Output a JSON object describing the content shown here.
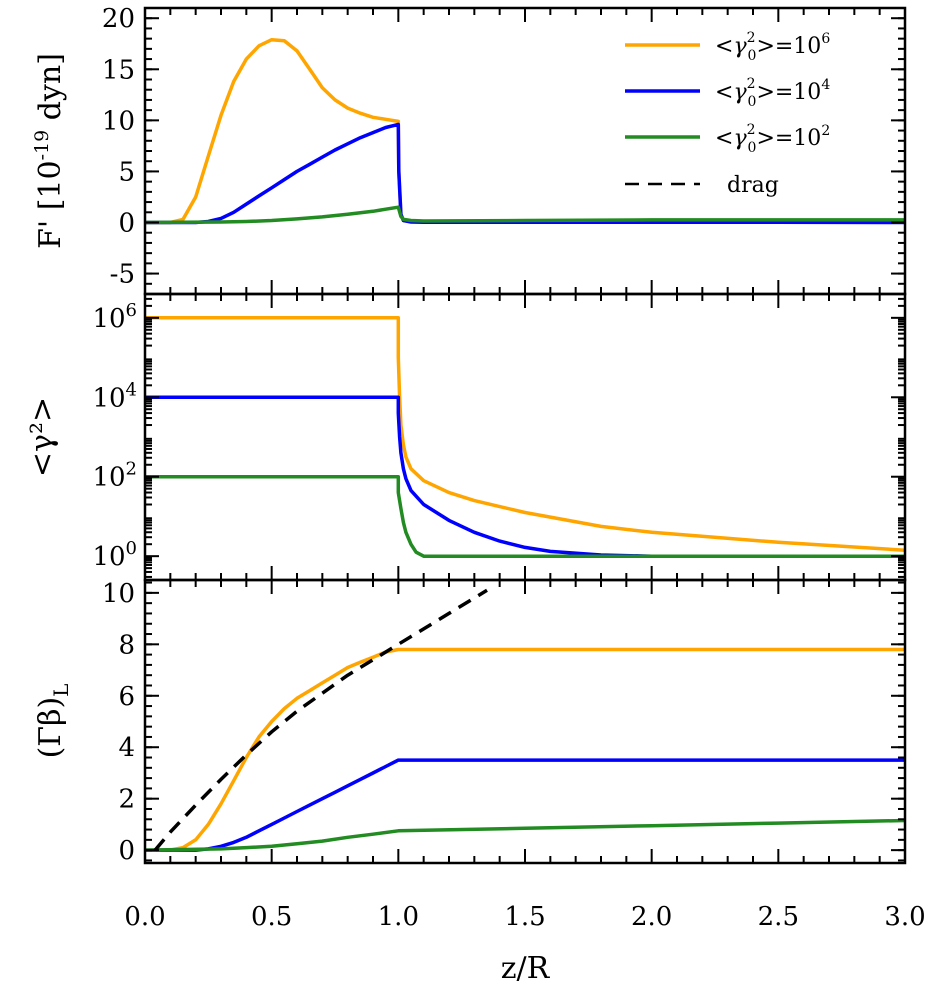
{
  "chart_data": {
    "type": "line",
    "x_axis": {
      "label": "z/R",
      "range": [
        0,
        3
      ],
      "ticks": [
        0.0,
        0.5,
        1.0,
        1.5,
        2.0,
        2.5,
        3.0
      ],
      "tick_labels": [
        "0.0",
        "0.5",
        "1.0",
        "1.5",
        "2.0",
        "2.5",
        "3.0"
      ]
    },
    "legend": {
      "position": "top-right",
      "entries": [
        {
          "label": "<γ0²>=10⁶",
          "prefix": "<",
          "symbol": "γ",
          "sub": "0",
          "sup": "2",
          "middle": ">=10",
          "exp": "6",
          "color": "#ffa500",
          "dash": false
        },
        {
          "label": "<γ0²>=10⁴",
          "prefix": "<",
          "symbol": "γ",
          "sub": "0",
          "sup": "2",
          "middle": ">=10",
          "exp": "4",
          "color": "#0000ff",
          "dash": false
        },
        {
          "label": "<γ0²>=10²",
          "prefix": "<",
          "symbol": "γ",
          "sub": "0",
          "sup": "2",
          "middle": ">=10",
          "exp": "2",
          "color": "#228b22",
          "dash": false
        },
        {
          "label": "drag",
          "color": "#000000",
          "dash": true
        }
      ]
    },
    "panels": [
      {
        "id": "force",
        "ylabel": "F' [10⁻¹⁹ dyn]",
        "ylabel_main": "F' [10",
        "ylabel_exp": "-19",
        "ylabel_end": " dyn]",
        "yscale": "linear",
        "ylim": [
          -7,
          21
        ],
        "yticks": [
          -5,
          0,
          5,
          10,
          15,
          20
        ],
        "ytick_labels": [
          "-5",
          "0",
          "5",
          "10",
          "15",
          "20"
        ],
        "series": [
          {
            "name": "<γ0²>=10⁶",
            "color": "#ffa500",
            "x": [
              0,
              0.1,
              0.15,
              0.2,
              0.25,
              0.3,
              0.35,
              0.4,
              0.45,
              0.5,
              0.55,
              0.6,
              0.65,
              0.7,
              0.75,
              0.8,
              0.85,
              0.9,
              0.95,
              1.0,
              1.002,
              1.01,
              1.02,
              1.05,
              1.1,
              1.5,
              2.0,
              2.5,
              3.0
            ],
            "y": [
              0,
              0,
              0.3,
              2.5,
              6.5,
              10.5,
              13.8,
              16.0,
              17.3,
              17.9,
              17.8,
              16.8,
              15.0,
              13.2,
              12.0,
              11.2,
              10.7,
              10.3,
              10.1,
              9.9,
              5.0,
              0.8,
              0.2,
              0.1,
              0.1,
              0.1,
              0.1,
              0.1,
              0.1
            ]
          },
          {
            "name": "<γ0²>=10⁴",
            "color": "#0000ff",
            "x": [
              0,
              0.2,
              0.25,
              0.3,
              0.35,
              0.4,
              0.45,
              0.5,
              0.55,
              0.6,
              0.65,
              0.7,
              0.75,
              0.8,
              0.85,
              0.9,
              0.95,
              1.0,
              1.002,
              1.01,
              1.02,
              1.05,
              1.1,
              1.5,
              2.0,
              2.5,
              3.0
            ],
            "y": [
              0,
              0,
              0.1,
              0.4,
              1.0,
              1.8,
              2.6,
              3.4,
              4.2,
              5.0,
              5.7,
              6.4,
              7.1,
              7.7,
              8.3,
              8.8,
              9.3,
              9.6,
              5.0,
              0.8,
              0.2,
              0.05,
              0.02,
              0.02,
              0.02,
              0.02,
              0.0
            ]
          },
          {
            "name": "<γ0²>=10²",
            "color": "#228b22",
            "x": [
              0,
              0.3,
              0.4,
              0.5,
              0.6,
              0.7,
              0.8,
              0.9,
              0.95,
              1.0,
              1.01,
              1.02,
              1.05,
              1.1,
              1.5,
              2.0,
              2.5,
              3.0
            ],
            "y": [
              0,
              0.05,
              0.1,
              0.2,
              0.35,
              0.55,
              0.8,
              1.1,
              1.3,
              1.5,
              0.6,
              0.3,
              0.2,
              0.15,
              0.2,
              0.25,
              0.25,
              0.25
            ]
          }
        ]
      },
      {
        "id": "gamma",
        "ylabel": "<γ²>",
        "yscale": "log",
        "ylim_log10": [
          -0.6,
          6.6
        ],
        "yticks_log10": [
          0,
          2,
          4,
          6
        ],
        "ytick_base": "10",
        "ytick_exps": [
          "0",
          "2",
          "4",
          "6"
        ],
        "series": [
          {
            "name": "<γ0²>=10⁶",
            "color": "#ffa500",
            "x": [
              0,
              1.0,
              1.0,
              1.005,
              1.01,
              1.02,
              1.03,
              1.05,
              1.1,
              1.2,
              1.3,
              1.5,
              1.8,
              2.0,
              2.5,
              3.0
            ],
            "y_log10": [
              6,
              6,
              5.0,
              4.0,
              3.3,
              2.8,
              2.5,
              2.2,
              1.9,
              1.6,
              1.4,
              1.1,
              0.75,
              0.6,
              0.35,
              0.15
            ]
          },
          {
            "name": "<γ0²>=10⁴",
            "color": "#0000ff",
            "x": [
              0,
              1.0,
              1.0,
              1.005,
              1.01,
              1.02,
              1.03,
              1.05,
              1.1,
              1.2,
              1.3,
              1.4,
              1.5,
              1.6,
              1.8,
              2.0,
              2.5,
              3.0
            ],
            "y_log10": [
              4,
              4,
              3.6,
              3.0,
              2.6,
              2.2,
              1.95,
              1.65,
              1.3,
              0.9,
              0.6,
              0.38,
              0.22,
              0.12,
              0.03,
              0.0,
              0.0,
              0.0
            ]
          },
          {
            "name": "<γ0²>=10²",
            "color": "#228b22",
            "x": [
              0,
              1.0,
              1.0,
              1.01,
              1.02,
              1.03,
              1.05,
              1.07,
              1.1,
              1.5,
              2.0,
              3.0
            ],
            "y_log10": [
              2,
              2,
              1.6,
              1.2,
              0.85,
              0.6,
              0.3,
              0.1,
              0.0,
              0.0,
              0.0,
              0.0
            ]
          }
        ]
      },
      {
        "id": "gammabeta",
        "ylabel": "(Γβ)L",
        "ylabel_main": "(Γβ)",
        "ylabel_sub": "L",
        "yscale": "linear",
        "ylim": [
          -0.5,
          10.5
        ],
        "yticks": [
          0,
          2,
          4,
          6,
          8,
          10
        ],
        "ytick_labels": [
          "0",
          "2",
          "4",
          "6",
          "8",
          "10"
        ],
        "series": [
          {
            "name": "<γ0²>=10⁶",
            "color": "#ffa500",
            "x": [
              0,
              0.1,
              0.15,
              0.2,
              0.25,
              0.3,
              0.35,
              0.4,
              0.45,
              0.5,
              0.55,
              0.6,
              0.65,
              0.7,
              0.75,
              0.8,
              0.85,
              0.9,
              0.95,
              1.0,
              1.5,
              2.0,
              2.5,
              3.0
            ],
            "y": [
              0,
              0,
              0.1,
              0.4,
              1.0,
              1.8,
              2.7,
              3.6,
              4.4,
              5.0,
              5.5,
              5.9,
              6.2,
              6.5,
              6.8,
              7.1,
              7.3,
              7.5,
              7.7,
              7.8,
              7.8,
              7.8,
              7.8,
              7.8
            ]
          },
          {
            "name": "<γ0²>=10⁴",
            "color": "#0000ff",
            "x": [
              0,
              0.2,
              0.25,
              0.3,
              0.35,
              0.4,
              0.45,
              0.5,
              0.55,
              0.6,
              0.65,
              0.7,
              0.75,
              0.8,
              0.85,
              0.9,
              0.95,
              1.0,
              1.5,
              2.0,
              2.5,
              3.0
            ],
            "y": [
              0,
              0,
              0.05,
              0.15,
              0.3,
              0.5,
              0.75,
              1.0,
              1.25,
              1.5,
              1.75,
              2.0,
              2.25,
              2.5,
              2.75,
              3.0,
              3.25,
              3.5,
              3.5,
              3.5,
              3.5,
              3.5
            ]
          },
          {
            "name": "<γ0²>=10²",
            "color": "#228b22",
            "x": [
              0,
              0.3,
              0.4,
              0.5,
              0.6,
              0.7,
              0.8,
              0.9,
              1.0,
              1.5,
              2.0,
              2.5,
              3.0
            ],
            "y": [
              0,
              0.05,
              0.1,
              0.15,
              0.25,
              0.35,
              0.5,
              0.62,
              0.75,
              0.85,
              0.95,
              1.05,
              1.15
            ]
          },
          {
            "name": "drag",
            "color": "#000000",
            "dash": true,
            "x": [
              0.04,
              0.1,
              0.2,
              0.3,
              0.4,
              0.5,
              0.6,
              0.7,
              0.8,
              0.9,
              1.0,
              1.1,
              1.2,
              1.3,
              1.35
            ],
            "y": [
              0,
              0.7,
              1.75,
              2.75,
              3.7,
              4.6,
              5.4,
              6.1,
              6.8,
              7.4,
              8.0,
              8.6,
              9.2,
              9.8,
              10.1
            ]
          }
        ]
      }
    ]
  }
}
